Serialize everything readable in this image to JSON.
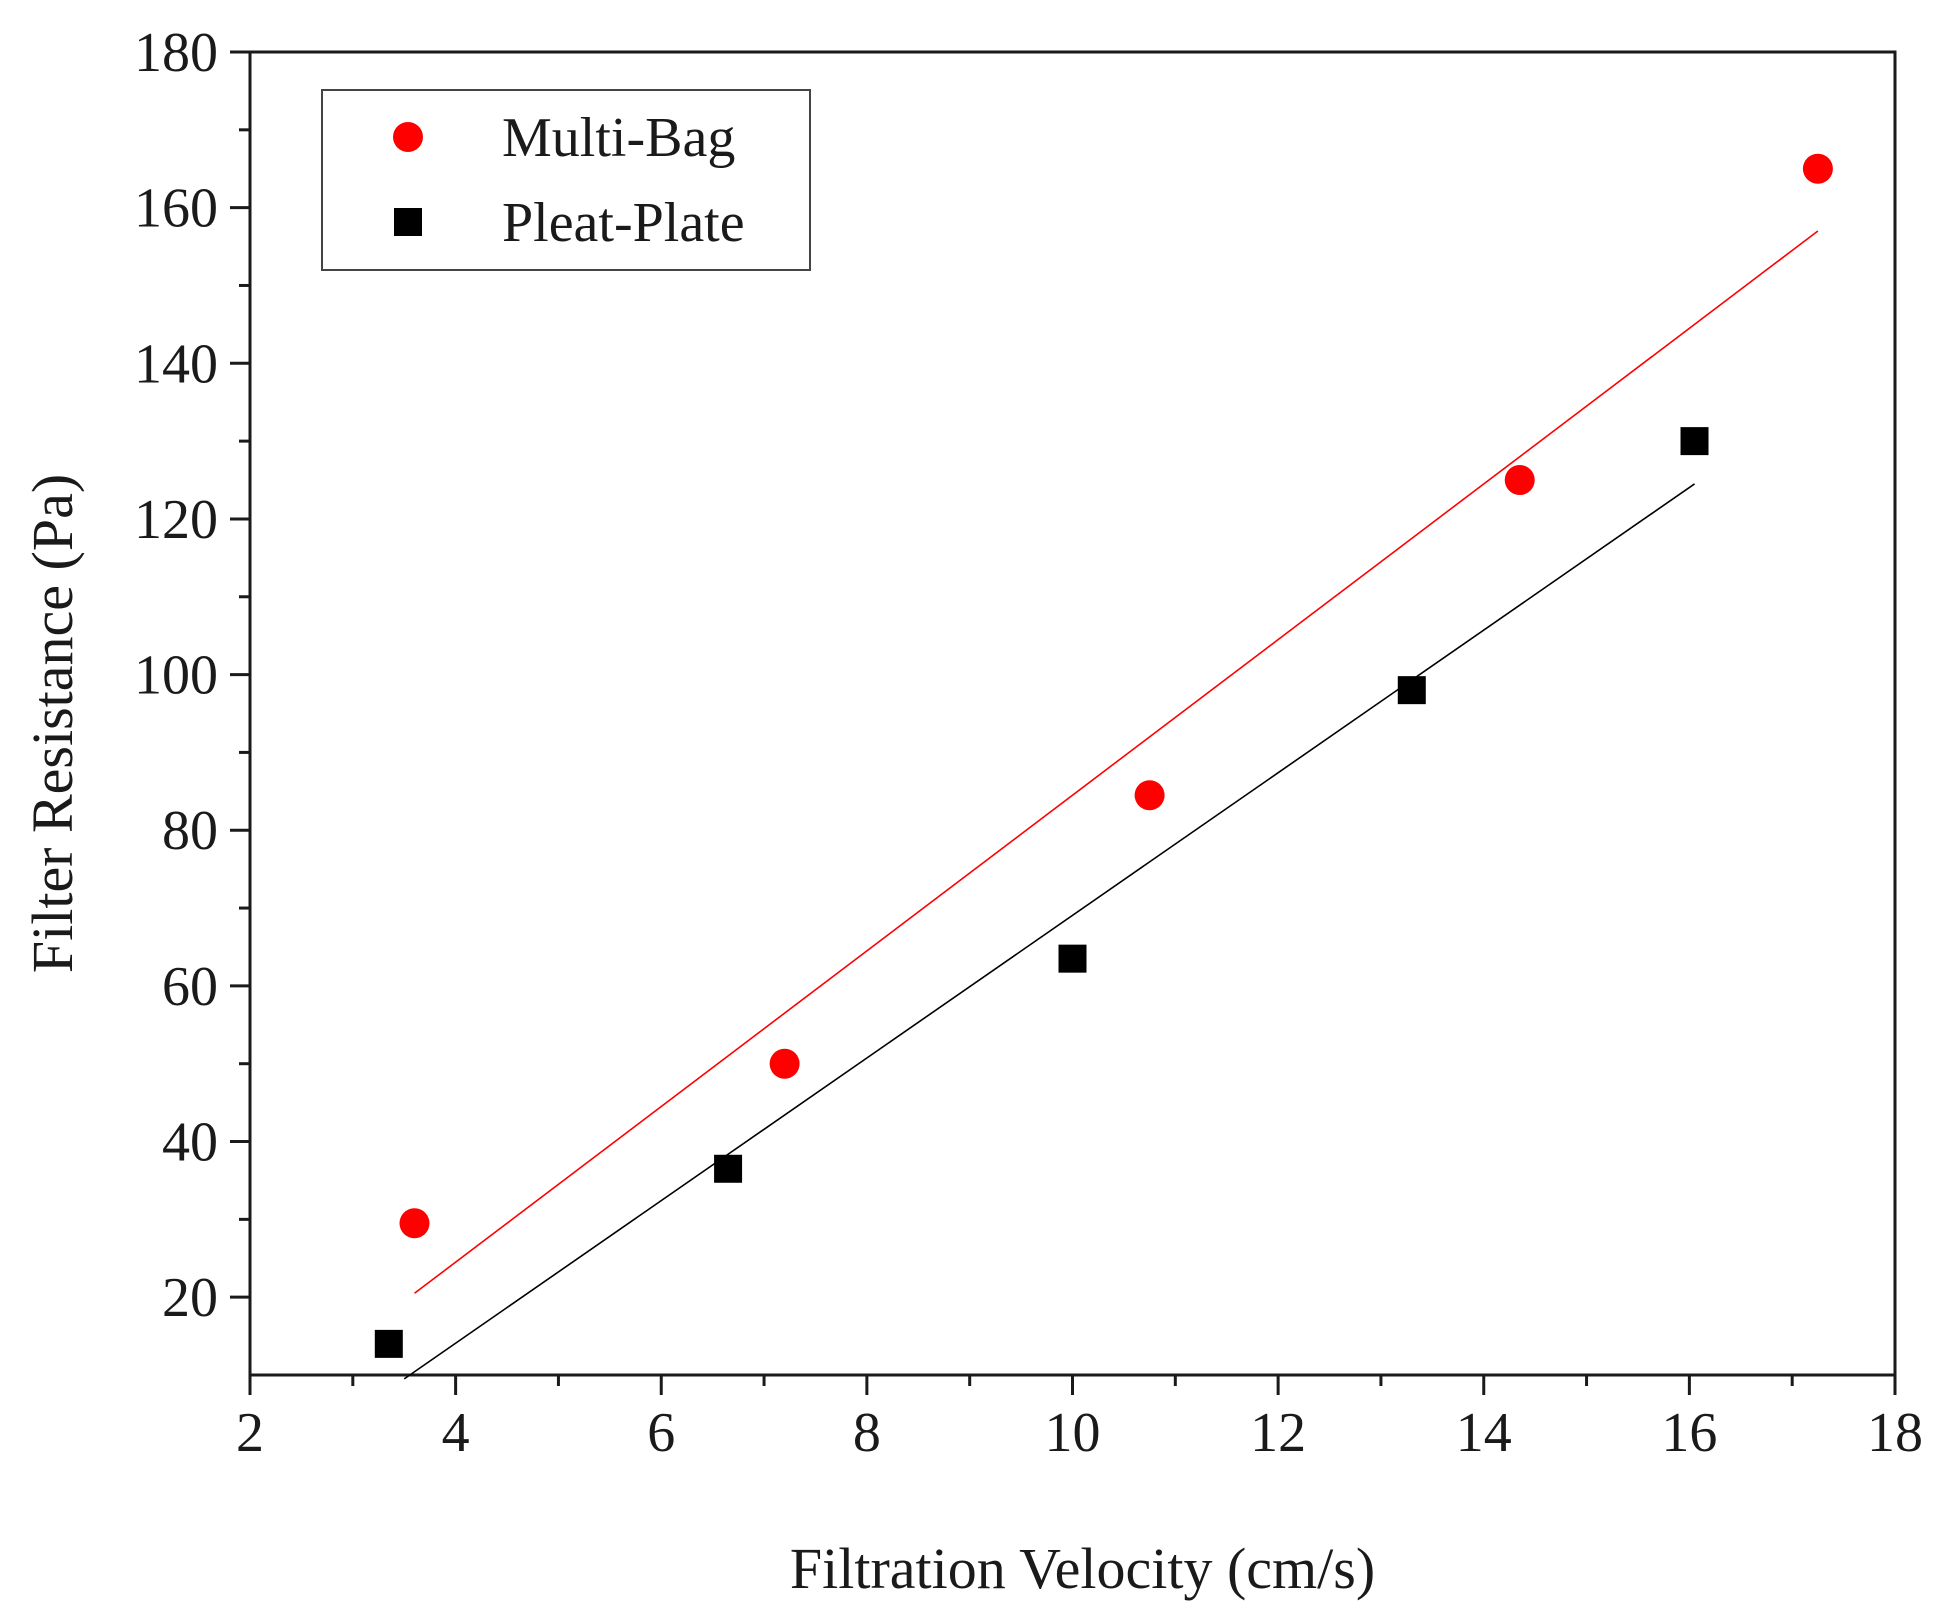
{
  "chart_data": {
    "type": "scatter",
    "title": "",
    "xlabel": "Filtration Velocity (cm/s)",
    "ylabel": "Filter Resistance (Pa)",
    "xlim": [
      2,
      18
    ],
    "ylim": [
      10,
      180
    ],
    "xticks": [
      2,
      4,
      6,
      8,
      10,
      12,
      14,
      16,
      18
    ],
    "yticks": [
      20,
      40,
      60,
      80,
      100,
      120,
      140,
      160,
      180
    ],
    "grid": false,
    "legend_position": "top-left",
    "series": [
      {
        "name": "Multi-Bag",
        "marker": "circle",
        "color": "#ff0000",
        "x": [
          3.6,
          7.2,
          10.75,
          14.35,
          17.25
        ],
        "y": [
          29.5,
          50,
          84.5,
          125,
          165
        ],
        "fit": {
          "x": [
            3.6,
            17.25
          ],
          "y": [
            20.5,
            157
          ]
        }
      },
      {
        "name": "Pleat-Plate",
        "marker": "square",
        "color": "#000000",
        "x": [
          3.35,
          6.65,
          10.0,
          13.3,
          16.05
        ],
        "y": [
          14,
          36.5,
          63.5,
          98,
          130
        ],
        "fit": {
          "x": [
            3.5,
            16.05
          ],
          "y": [
            9.5,
            124.5
          ]
        }
      }
    ]
  }
}
